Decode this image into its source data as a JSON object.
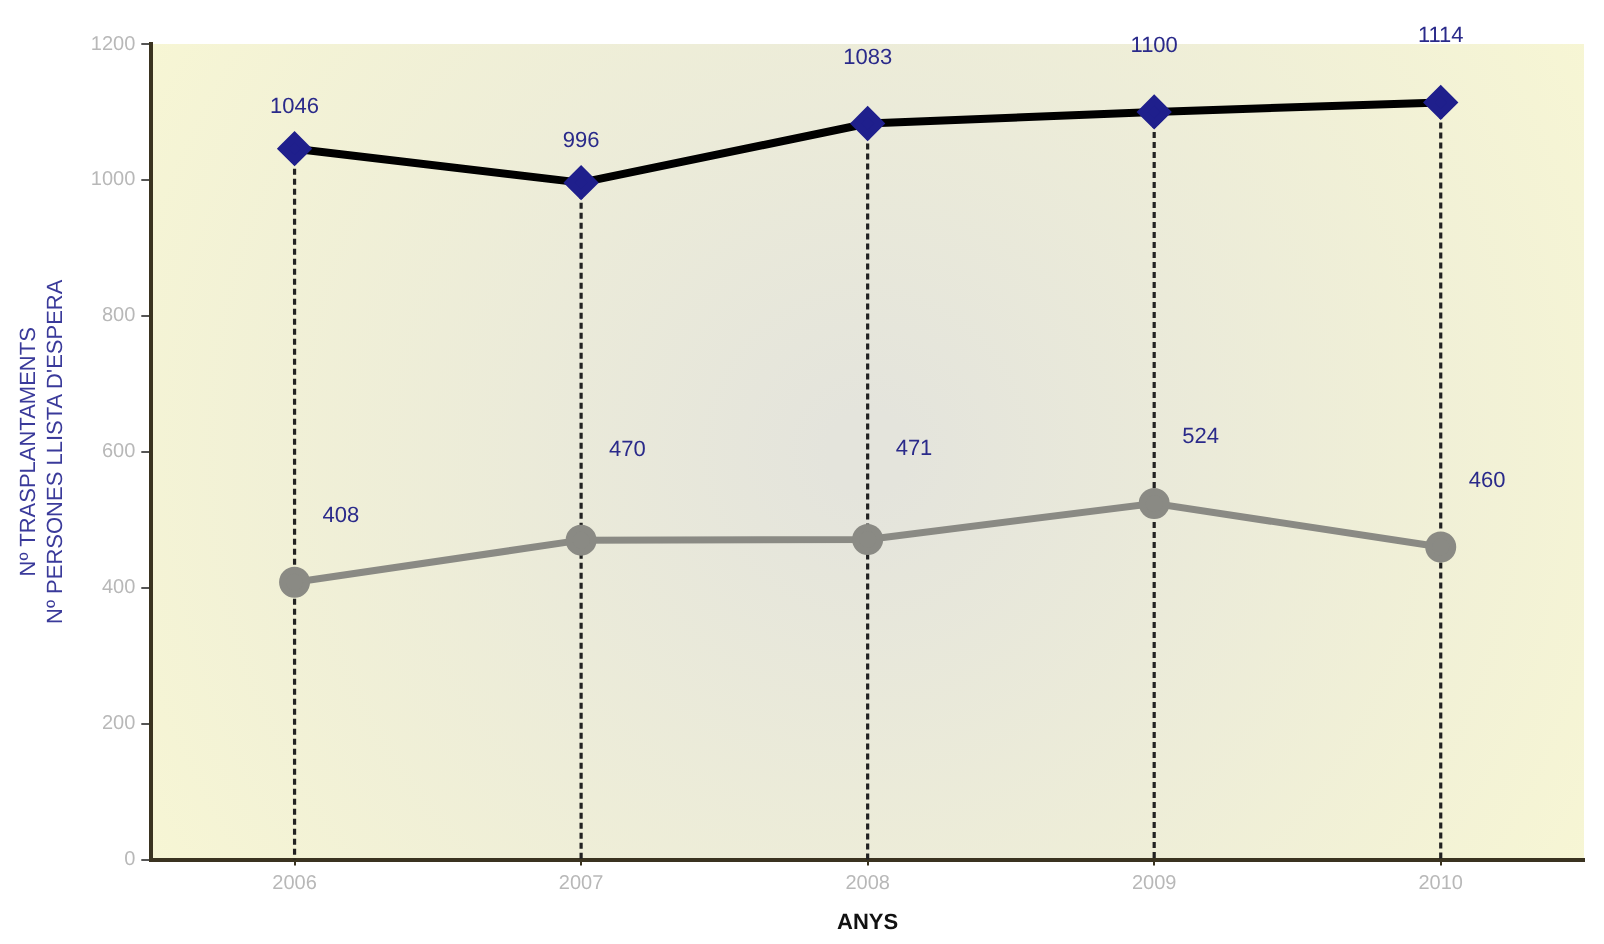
{
  "chart_data": {
    "type": "line",
    "categories": [
      "2006",
      "2007",
      "2008",
      "2009",
      "2010"
    ],
    "series": [
      {
        "name": null,
        "color": "#000000",
        "marker": "diamond",
        "values": [
          1046,
          996,
          1083,
          1100,
          1114
        ]
      },
      {
        "name": null,
        "color": "#8a8a84",
        "marker": "circle",
        "values": [
          408,
          470,
          471,
          524,
          460
        ]
      }
    ],
    "xlabel": "ANYS",
    "ylabel": "Nº TRASPLANTAMENTS\nNº PERSONES LLISTA D'ESPERA",
    "ylim": [
      0,
      1200
    ],
    "yticks": [
      0,
      200,
      400,
      600,
      800,
      1000,
      1200
    ],
    "grid": "x",
    "legend": false,
    "data_labels": true,
    "line_style": "solid"
  }
}
